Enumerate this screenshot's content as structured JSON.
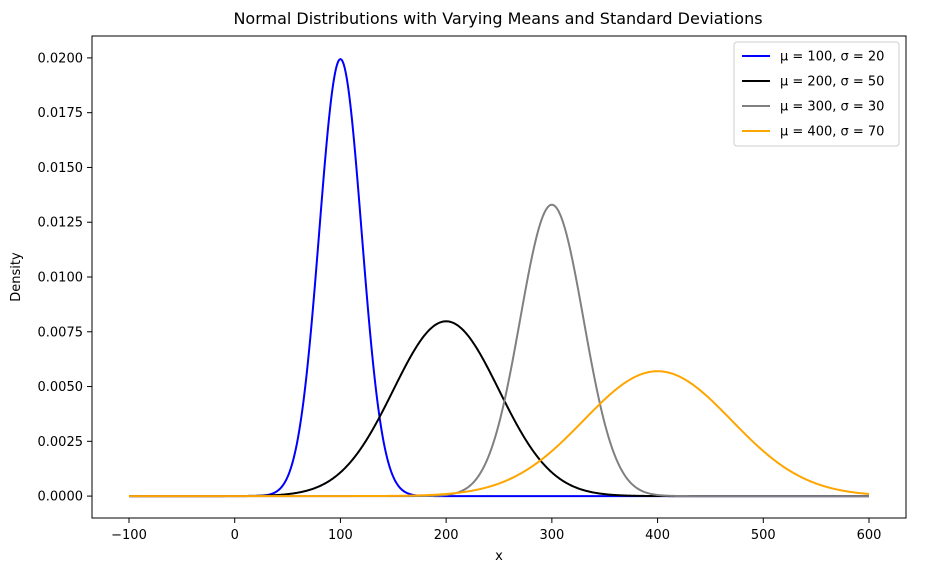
{
  "chart_data": {
    "type": "line",
    "title": "Normal Distributions with Varying Means and Standard Deviations",
    "xlabel": "x",
    "ylabel": "Density",
    "xlim": [
      -135,
      635
    ],
    "ylim": [
      -0.001,
      0.021
    ],
    "x_ticks": [
      -100,
      0,
      100,
      200,
      300,
      400,
      500,
      600
    ],
    "x_tick_labels": [
      "−100",
      "0",
      "100",
      "200",
      "300",
      "400",
      "500",
      "600"
    ],
    "y_ticks": [
      0.0,
      0.0025,
      0.005,
      0.0075,
      0.01,
      0.0125,
      0.015,
      0.0175,
      0.02
    ],
    "y_tick_labels": [
      "0.0000",
      "0.0025",
      "0.0050",
      "0.0075",
      "0.0100",
      "0.0125",
      "0.0150",
      "0.0175",
      "0.0200"
    ],
    "grid": false,
    "legend_position": "top-right",
    "x_range": [
      -100,
      600
    ],
    "series": [
      {
        "name": "μ = 100, σ = 20",
        "mu": 100,
        "sigma": 20,
        "color": "#0000ff"
      },
      {
        "name": "μ = 200, σ = 50",
        "mu": 200,
        "sigma": 50,
        "color": "#000000"
      },
      {
        "name": "μ = 300, σ = 30",
        "mu": 300,
        "sigma": 30,
        "color": "#808080"
      },
      {
        "name": "μ = 400, σ = 70",
        "mu": 400,
        "sigma": 70,
        "color": "#ffa500"
      }
    ]
  }
}
